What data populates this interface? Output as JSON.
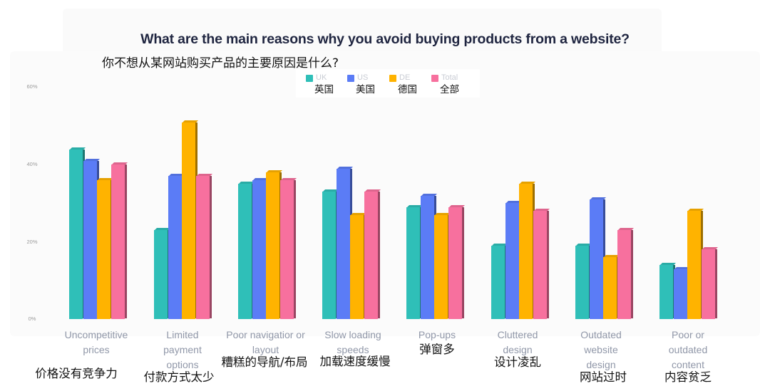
{
  "title": "What are the main reasons why you avoid buying products from a website?",
  "title_zh": "你不想从某网站购买产品的主要原因是什么?",
  "legend": [
    {
      "en": "UK",
      "zh": "英国",
      "color": "#2fbfb8"
    },
    {
      "en": "US",
      "zh": "美国",
      "color": "#5b7cf6"
    },
    {
      "en": "DE",
      "zh": "德国",
      "color": "#ffb300"
    },
    {
      "en": "Total",
      "zh": "全部",
      "color": "#f7709e"
    }
  ],
  "y_ticks": [
    "60%",
    "40%",
    "20%",
    "0%"
  ],
  "categories": [
    {
      "en": "Uncompetitive prices",
      "zh": "价格没有竞争力"
    },
    {
      "en": "Limited payment options",
      "zh": "付款方式太少"
    },
    {
      "en": "Poor navigatior or layout",
      "zh": "糟糕的导航/布局"
    },
    {
      "en": "Slow loading speeds",
      "zh": "加载速度缓慢"
    },
    {
      "en": "Pop-ups",
      "zh": "弹窗多"
    },
    {
      "en": "Cluttered design",
      "zh": "设计凌乱"
    },
    {
      "en": "Outdated website design",
      "zh": "网站过时"
    },
    {
      "en": "Poor or outdated content",
      "zh": "内容贫乏"
    }
  ],
  "chart_data": {
    "type": "bar",
    "title": "What are the main reasons why you avoid buying products from a website?",
    "subtitle": "你不想从某网站购买产品的主要原因是什么?",
    "categories": [
      "Uncompetitive prices",
      "Limited payment options",
      "Poor navigatior or layout",
      "Slow loading speeds",
      "Pop-ups",
      "Cluttered design",
      "Outdated website design",
      "Poor or outdated content"
    ],
    "categories_zh": [
      "价格没有竞争力",
      "付款方式太少",
      "糟糕的导航/布局",
      "加载速度缓慢",
      "弹窗多",
      "设计凌乱",
      "网站过时",
      "内容贫乏"
    ],
    "series": [
      {
        "name": "UK",
        "name_zh": "英国",
        "color": "#2fbfb8",
        "values": [
          44,
          23,
          35,
          33,
          29,
          19,
          19,
          14
        ]
      },
      {
        "name": "US",
        "name_zh": "美国",
        "color": "#5b7cf6",
        "values": [
          41,
          37,
          36,
          39,
          32,
          30,
          31,
          13
        ]
      },
      {
        "name": "DE",
        "name_zh": "德国",
        "color": "#ffb300",
        "values": [
          36,
          51,
          38,
          27,
          27,
          35,
          16,
          28
        ]
      },
      {
        "name": "Total",
        "name_zh": "全部",
        "color": "#f7709e",
        "values": [
          40,
          37,
          36,
          33,
          29,
          28,
          23,
          18
        ]
      }
    ],
    "xlabel": "",
    "ylabel": "",
    "ylim": [
      0,
      60
    ],
    "y_ticks": [
      "0%",
      "20%",
      "40%",
      "60%"
    ],
    "grid": false,
    "legend_position": "top",
    "style": "3d-bar"
  }
}
